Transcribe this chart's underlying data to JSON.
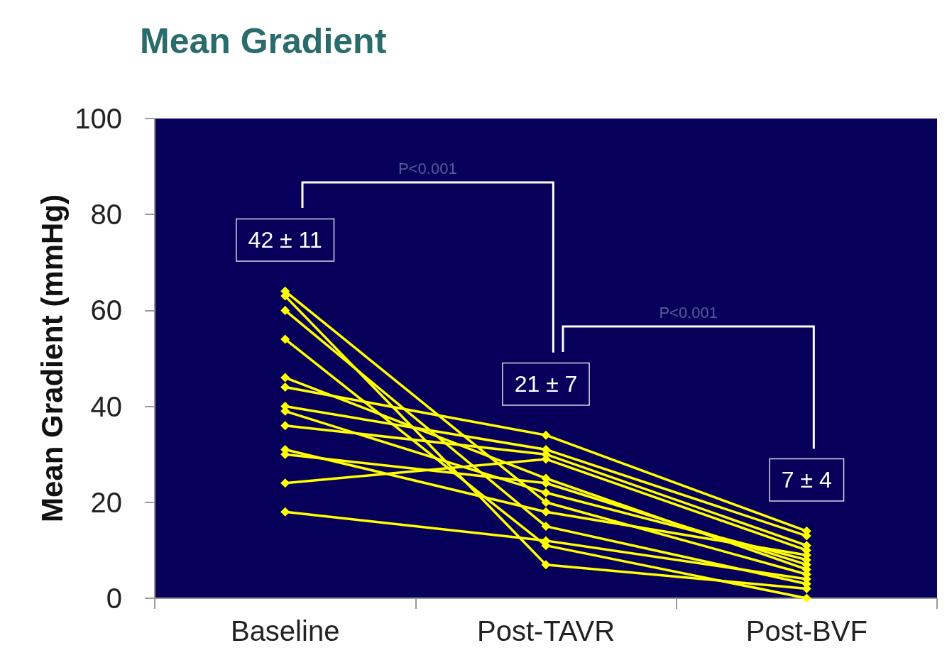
{
  "chart_data": {
    "type": "line",
    "title": "Mean Gradient",
    "ylabel": "Mean Gradient (mmHg)",
    "categories": [
      "Baseline",
      "Post-TAVR",
      "Post-BVF"
    ],
    "series": [
      {
        "color": "#ffff00",
        "values": [
          64,
          20,
          5
        ]
      },
      {
        "color": "#ffff00",
        "values": [
          63,
          7,
          2
        ]
      },
      {
        "color": "#ffff00",
        "values": [
          60,
          15,
          3
        ]
      },
      {
        "color": "#ffff00",
        "values": [
          54,
          11,
          0
        ]
      },
      {
        "color": "#ffff00",
        "values": [
          46,
          25,
          6
        ]
      },
      {
        "color": "#ffff00",
        "values": [
          44,
          34,
          14
        ]
      },
      {
        "color": "#ffff00",
        "values": [
          40,
          31,
          13
        ]
      },
      {
        "color": "#ffff00",
        "values": [
          39,
          22,
          8
        ]
      },
      {
        "color": "#ffff00",
        "values": [
          36,
          30,
          11
        ]
      },
      {
        "color": "#ffff00",
        "values": [
          31,
          18,
          9
        ]
      },
      {
        "color": "#ffff00",
        "values": [
          30,
          24,
          7
        ]
      },
      {
        "color": "#ffff00",
        "values": [
          24,
          29,
          10
        ]
      },
      {
        "color": "#ffff00",
        "values": [
          18,
          12,
          4
        ]
      }
    ],
    "ylim": [
      0,
      100
    ],
    "yticks": [
      0,
      20,
      40,
      60,
      80,
      100
    ],
    "grid": false,
    "marker": "diamond",
    "line_style": "solid",
    "annotations": [
      "42 ± 11",
      "21 ± 7",
      "7 ± 4",
      "P<0.001",
      "P<0.001"
    ]
  }
}
